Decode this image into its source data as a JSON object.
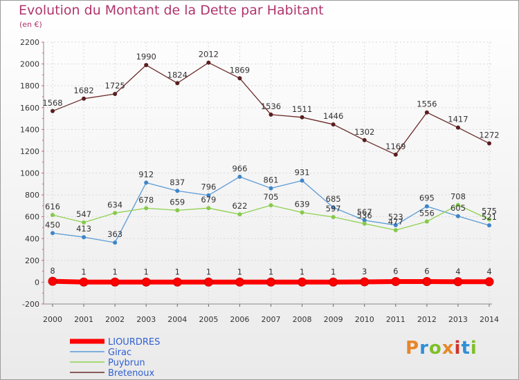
{
  "header": {
    "title": "Evolution du Montant de la Dette par Habitant",
    "unit": "(en €)"
  },
  "brand": {
    "logo_text": "Proxiti",
    "colors": [
      "#e8862a",
      "#2f8fd6",
      "#7fbf2a",
      "#e8862a",
      "#d0342c",
      "#2f8fd6",
      "#7fbf2a"
    ]
  },
  "chart_data": {
    "type": "line",
    "title": "Evolution du Montant de la Dette par Habitant",
    "ylabel": "(en €)",
    "xlabel": "",
    "x": [
      "2000",
      "2001",
      "2002",
      "2003",
      "2004",
      "2005",
      "2006",
      "2007",
      "2008",
      "2009",
      "2010",
      "2011",
      "2012",
      "2013",
      "2014"
    ],
    "ylim": [
      -200,
      2200
    ],
    "yticks": [
      "-200",
      "0",
      "200",
      "400",
      "600",
      "800",
      "1000",
      "1200",
      "1400",
      "1600",
      "1800",
      "2000",
      "2200"
    ],
    "grid": true,
    "legend_position": "bottom-left",
    "series": [
      {
        "name": "LIOURDRES",
        "color": "#ff0000",
        "values": [
          8,
          1,
          1,
          1,
          1,
          1,
          1,
          1,
          1,
          1,
          3,
          6,
          6,
          4,
          4
        ],
        "labels": [
          "8",
          "1",
          "1",
          "1",
          "1",
          "1",
          "1",
          "1",
          "1",
          "1",
          "3",
          "6",
          "6",
          "4",
          "4"
        ]
      },
      {
        "name": "Girac",
        "color": "#5b9bd5",
        "values": [
          450,
          413,
          363,
          912,
          837,
          796,
          966,
          861,
          931,
          685,
          567,
          523,
          695,
          605,
          521
        ],
        "labels": [
          "450",
          "413",
          "363",
          "912",
          "837",
          "796",
          "966",
          "861",
          "931",
          "685",
          "567",
          "523",
          "695",
          "605",
          "521"
        ]
      },
      {
        "name": "Puybrun",
        "color": "#8fd14f",
        "values": [
          616,
          547,
          634,
          678,
          659,
          679,
          622,
          705,
          639,
          597,
          536,
          477,
          556,
          708,
          575
        ],
        "labels": [
          "616",
          "547",
          "634",
          "678",
          "659",
          "679",
          "622",
          "705",
          "639",
          "597",
          "536",
          "477",
          "556",
          "708",
          "575"
        ]
      },
      {
        "name": "Bretenoux",
        "color": "#6b2a2a",
        "values": [
          1568,
          1682,
          1725,
          1990,
          1824,
          2012,
          1869,
          1536,
          1511,
          1446,
          1302,
          1169,
          1556,
          1417,
          1272
        ],
        "labels": [
          "1568",
          "1682",
          "1725",
          "1990",
          "1824",
          "2012",
          "1869",
          "1536",
          "1511",
          "1446",
          "1302",
          "1169",
          "1556",
          "1417",
          "1272"
        ]
      }
    ]
  }
}
